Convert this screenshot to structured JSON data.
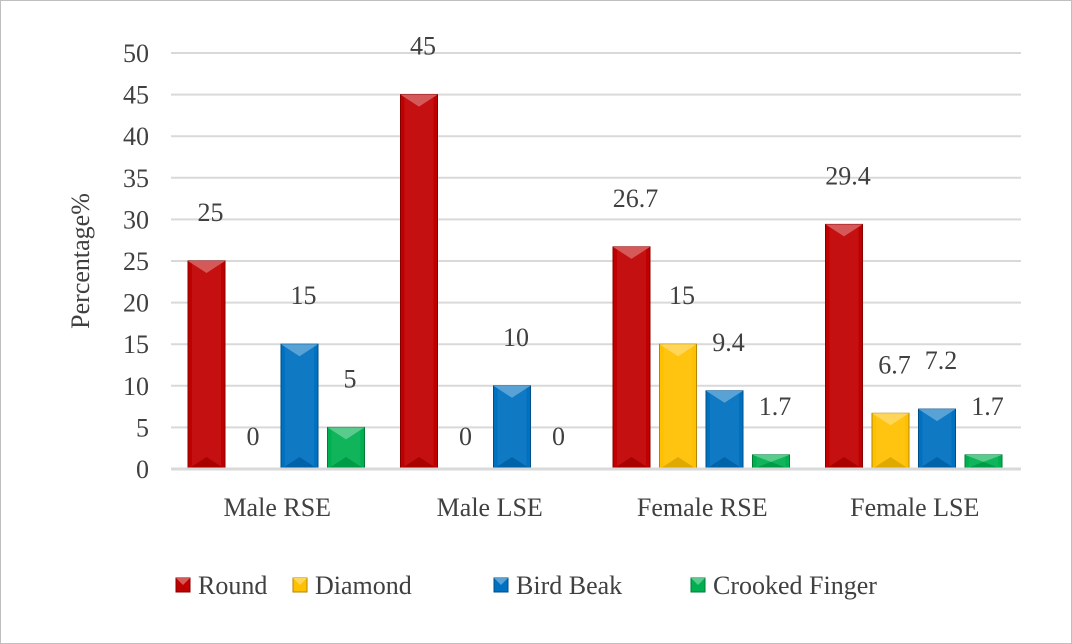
{
  "chart_data": {
    "type": "bar",
    "title": "",
    "xlabel": "",
    "ylabel": "Percentage%",
    "ylim": [
      0,
      50
    ],
    "ytick_step": 5,
    "grid": true,
    "legend_position": "bottom",
    "categories": [
      "Male RSE",
      "Male LSE",
      "Female RSE",
      "Female LSE"
    ],
    "series": [
      {
        "name": "Round",
        "color": "#c00000",
        "values": [
          25,
          45,
          26.7,
          29.4
        ],
        "labels": [
          "25",
          "45",
          "26.7",
          "29.4"
        ]
      },
      {
        "name": "Diamond",
        "color": "#ffc000",
        "values": [
          0,
          0,
          15,
          6.7
        ],
        "labels": [
          "0",
          "0",
          "15",
          "6.7"
        ]
      },
      {
        "name": "Bird Beak",
        "color": "#0070c0",
        "values": [
          15,
          10,
          9.4,
          7.2
        ],
        "labels": [
          "15",
          "10",
          "9.4",
          "7.2"
        ]
      },
      {
        "name": "Crooked Finger",
        "color": "#00b050",
        "values": [
          5,
          0,
          1.7,
          1.7
        ],
        "labels": [
          "5",
          "0",
          "1.7",
          "1.7"
        ]
      }
    ]
  }
}
